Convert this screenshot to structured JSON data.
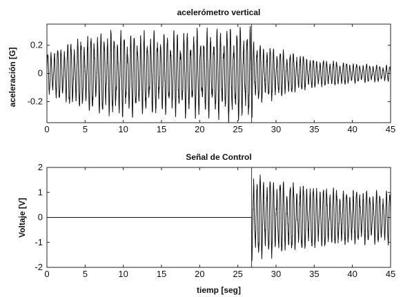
{
  "chart_data": [
    {
      "type": "line",
      "title": "acelerómetro vertical",
      "xlabel": "",
      "ylabel": "aceleración [G]",
      "xlim": [
        0,
        45
      ],
      "ylim": [
        -0.35,
        0.35
      ],
      "xticks": [
        0,
        5,
        10,
        15,
        20,
        25,
        30,
        35,
        40,
        45
      ],
      "xtick_labels": [
        "0",
        "5",
        "10",
        "15",
        "20",
        "25",
        "30",
        "35",
        "40",
        "45"
      ],
      "yticks": [
        -0.2,
        0,
        0.2
      ],
      "ytick_labels": [
        "-0.2",
        "0",
        "0.2"
      ],
      "grid": false,
      "vertical_marker_x": 26.8,
      "series": [
        {
          "style": "oscillating",
          "approx_frequency_hz": 2.3,
          "segments": [
            {
              "t": 0,
              "amplitude": 0.14
            },
            {
              "t": 3,
              "amplitude": 0.22
            },
            {
              "t": 8,
              "amplitude": 0.29
            },
            {
              "t": 12,
              "amplitude": 0.27
            },
            {
              "t": 18,
              "amplitude": 0.27
            },
            {
              "t": 24,
              "amplitude": 0.3
            },
            {
              "t": 26.8,
              "amplitude": 0.3
            },
            {
              "t": 27.5,
              "amplitude": 0.2
            },
            {
              "t": 31,
              "amplitude": 0.16
            },
            {
              "t": 35,
              "amplitude": 0.1
            },
            {
              "t": 40,
              "amplitude": 0.07
            },
            {
              "t": 45,
              "amplitude": 0.05
            }
          ]
        }
      ]
    },
    {
      "type": "line",
      "title": "Señal de Control",
      "xlabel": "tiemp [seg]",
      "ylabel": "Voltaje [V]",
      "xlim": [
        0,
        45
      ],
      "ylim": [
        -2,
        2
      ],
      "xticks": [
        0,
        5,
        10,
        15,
        20,
        25,
        30,
        35,
        40,
        45
      ],
      "xtick_labels": [
        "0",
        "5",
        "10",
        "15",
        "20",
        "25",
        "30",
        "35",
        "40",
        "45"
      ],
      "yticks": [
        -2,
        -1,
        0,
        1,
        2
      ],
      "ytick_labels": [
        "-2",
        "-1",
        "0",
        "1",
        "2"
      ],
      "grid": false,
      "vertical_marker_x": 26.8,
      "series": [
        {
          "style": "zero-then-oscillating",
          "onset_t": 26.8,
          "approx_frequency_hz": 2.3,
          "segments": [
            {
              "t": 26.8,
              "amplitude": 1.7
            },
            {
              "t": 29,
              "amplitude": 1.5
            },
            {
              "t": 33,
              "amplitude": 1.3
            },
            {
              "t": 38,
              "amplitude": 1.1
            },
            {
              "t": 45,
              "amplitude": 1.0
            }
          ]
        }
      ]
    }
  ]
}
